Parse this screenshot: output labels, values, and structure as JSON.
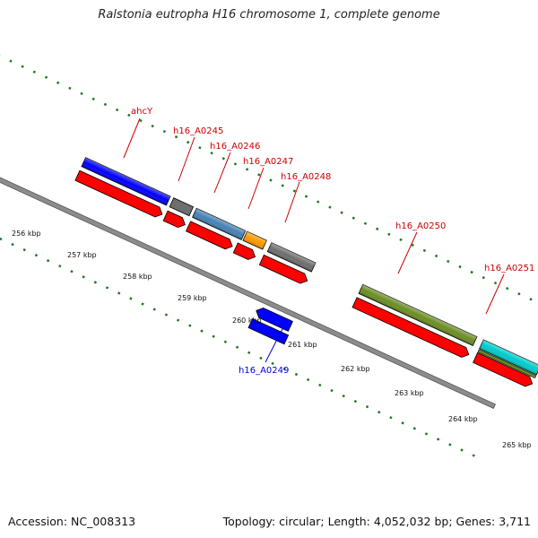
{
  "title": "Ralstonia eutropha H16 chromosome 1, complete genome",
  "footer": {
    "accession": "Accession: NC_008313",
    "summary": "Topology: circular; Length: 4,052,032 bp; Genes: 3,711"
  },
  "axis": {
    "ticks": [
      "256 kbp",
      "257 kbp",
      "258 kbp",
      "259 kbp",
      "260 kbp",
      "261 kbp",
      "262 kbp",
      "263 kbp",
      "264 kbp",
      "265 kbp"
    ]
  },
  "gene_labels": {
    "ahcY": "ahcY",
    "h16_A0245": "h16_A0245",
    "h16_A0246": "h16_A0246",
    "h16_A0247": "h16_A0247",
    "h16_A0248": "h16_A0248",
    "h16_A0249": "h16_A0249",
    "h16_A0250": "h16_A0250",
    "h16_A0251": "h16_A0251"
  },
  "colors": {
    "cds": "#ff0000",
    "gene_blue": "#0000ff",
    "gray": "#6e6e6e",
    "steelblue": "#4682b4",
    "orange": "#ff9900",
    "olive": "#6b8e23",
    "cyan": "#00cccc",
    "khaki": "#bdb76b",
    "label_red": "#cc0000",
    "label_blue": "#0000cc",
    "dots": "#1a7a1a"
  }
}
